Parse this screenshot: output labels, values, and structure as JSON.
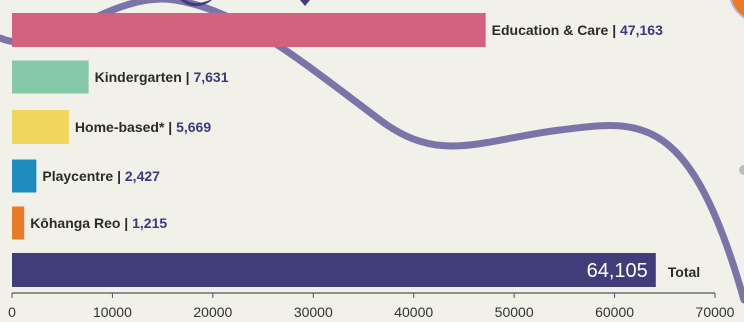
{
  "chart_data": {
    "type": "bar",
    "orientation": "horizontal",
    "categories": [
      "Education & Care",
      "Kindergarten",
      "Home-based*",
      "Playcentre",
      "Kōhanga Reo"
    ],
    "values": [
      47163,
      7631,
      5669,
      2427,
      1215
    ],
    "value_labels": [
      "47,163",
      "7,631",
      "5,669",
      "2,427",
      "1,215"
    ],
    "colors": [
      "#d4617e",
      "#86c9a7",
      "#f1d65e",
      "#1d8dbf",
      "#ea7a26"
    ],
    "total": {
      "label": "Total",
      "value": 64105,
      "value_label": "64,105",
      "color": "#403d7a"
    },
    "xlim": [
      0,
      70000
    ],
    "xticks": [
      0,
      10000,
      20000,
      30000,
      40000,
      50000,
      60000,
      70000
    ],
    "xtick_labels": [
      "0",
      "10000",
      "20000",
      "30000",
      "40000",
      "50000",
      "60000",
      "70000"
    ],
    "separator": " | ",
    "grid": false
  },
  "colors": {
    "background": "#f1f1e9",
    "curve": "#7b74a8",
    "axis": "#555555",
    "accent_orange": "#ea7a26"
  }
}
